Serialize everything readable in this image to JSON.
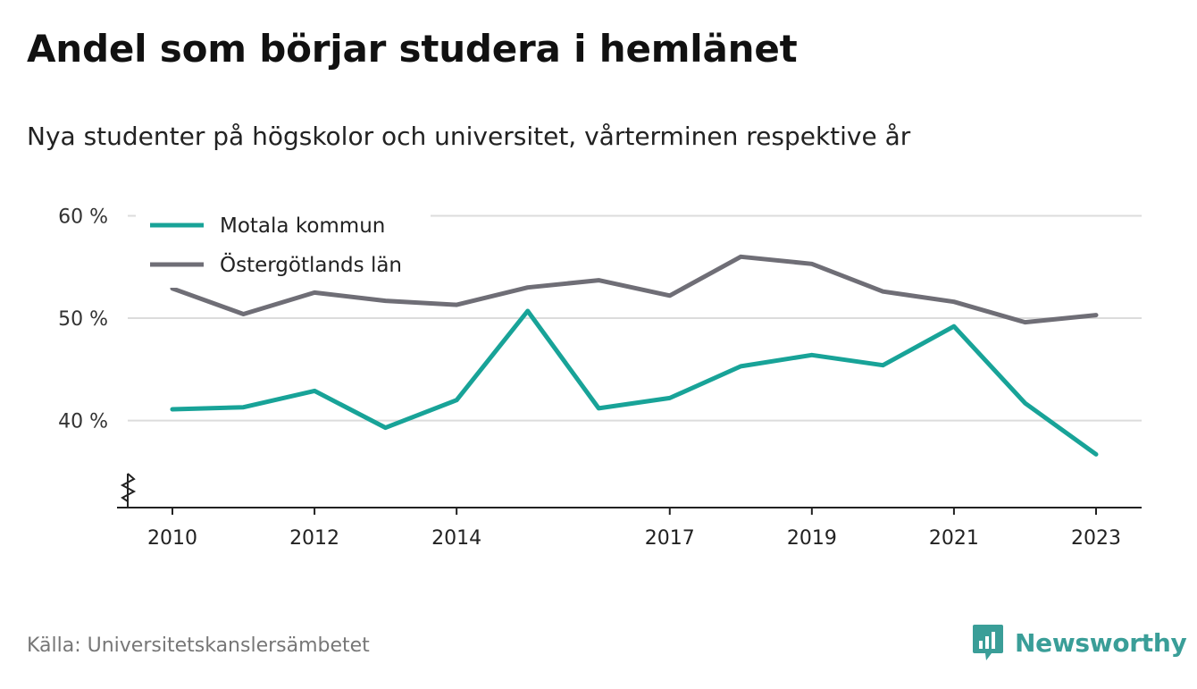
{
  "title": "Andel som börjar studera i hemlänet",
  "subtitle": "Nya studenter på högskolor och universitet, vårterminen respektive år",
  "source": "Källa: Universitetskanslersämbetet",
  "brand": {
    "name": "Newsworthy",
    "icon": "newsworthy-logo-icon",
    "color": "#3a9e98"
  },
  "chart_data": {
    "type": "line",
    "x": [
      2010,
      2011,
      2012,
      2013,
      2014,
      2015,
      2016,
      2017,
      2018,
      2019,
      2020,
      2021,
      2022,
      2023
    ],
    "x_ticks": [
      "2010",
      "2012",
      "2014",
      "2017",
      "2019",
      "2021",
      "2023"
    ],
    "y_ticks": [
      "40 %",
      "50 %",
      "60 %"
    ],
    "y_tick_values": [
      40,
      50,
      60
    ],
    "ylim": [
      31.5,
      61
    ],
    "y_axis_break": true,
    "grid": true,
    "legend": "top-left",
    "series": [
      {
        "name": "Motala kommun",
        "color": "#18a398",
        "values": [
          41.1,
          41.3,
          42.9,
          39.3,
          42.0,
          50.7,
          41.2,
          42.2,
          45.3,
          46.4,
          45.4,
          49.2,
          41.7,
          36.7
        ]
      },
      {
        "name": "Östergötlands län",
        "color": "#6f6e76",
        "values": [
          52.9,
          50.4,
          52.5,
          51.7,
          51.3,
          53.0,
          53.7,
          52.2,
          56.0,
          55.3,
          52.6,
          51.6,
          49.6,
          50.3
        ]
      }
    ]
  }
}
